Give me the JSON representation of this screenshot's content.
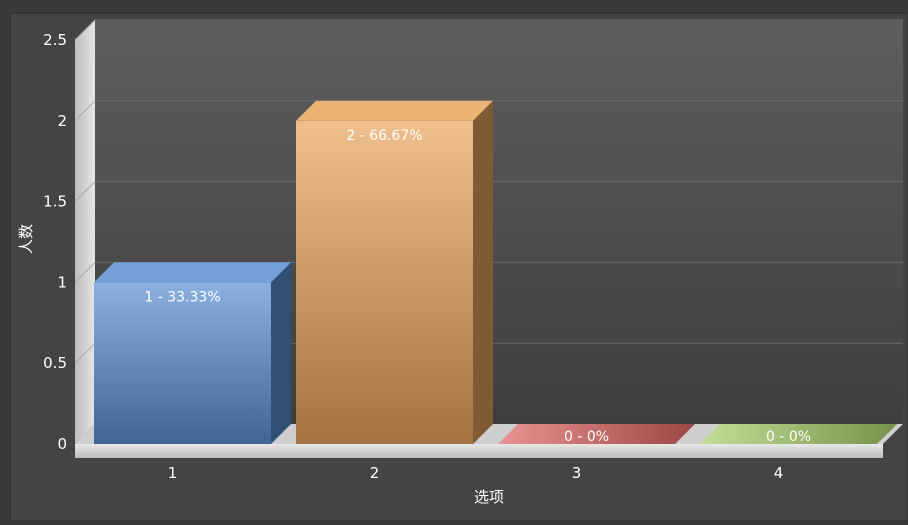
{
  "chart_data": {
    "type": "bar",
    "title": "",
    "xlabel": "选项",
    "ylabel": "人数",
    "ylim": [
      0,
      2.5
    ],
    "yticks": [
      "0",
      "0.5",
      "1",
      "1.5",
      "2",
      "2.5"
    ],
    "categories": [
      "1",
      "2",
      "3",
      "4"
    ],
    "values": [
      1,
      2,
      0,
      0
    ],
    "data_labels": [
      "1 - 33.33%",
      "2 - 66.67%",
      "0 - 0%",
      "0 - 0%"
    ],
    "colors": [
      "#5b8fd4",
      "#e8a45c",
      "#e06464",
      "#a8d06a"
    ],
    "grid": true,
    "legend": "none"
  }
}
